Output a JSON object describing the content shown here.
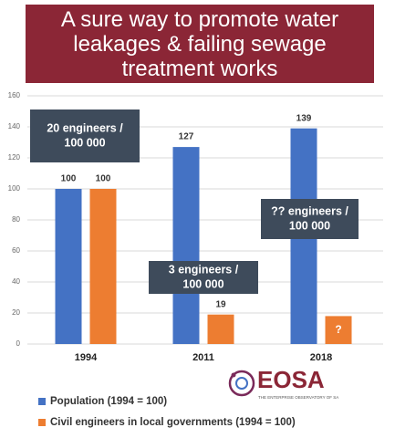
{
  "chart_data": {
    "type": "bar",
    "title": "A sure way to promote water leakages & failing sewage treatment works",
    "categories": [
      "1994",
      "2011",
      "2018"
    ],
    "series": [
      {
        "name": "Population (1994 = 100)",
        "color": "#4472c4",
        "values": [
          100,
          127,
          139
        ]
      },
      {
        "name": "Civil engineers in local governments (1994 = 100)",
        "color": "#ed7d31",
        "values": [
          100,
          19,
          18
        ],
        "value_labels": [
          "100",
          "19",
          "?"
        ]
      }
    ],
    "ylim": [
      0,
      160
    ],
    "yticks": [
      0,
      20,
      40,
      60,
      80,
      100,
      120,
      140,
      160
    ],
    "grid": true,
    "annotations": [
      {
        "lines": [
          "20 engineers /",
          "100 000"
        ]
      },
      {
        "lines": [
          "3 engineers /",
          "100 000"
        ]
      },
      {
        "lines": [
          "?? engineers /",
          "100 000"
        ]
      }
    ],
    "logo": {
      "text": "EOSA",
      "tagline": "THE ENTERPRISE OBSERVATORY OF SA"
    }
  }
}
